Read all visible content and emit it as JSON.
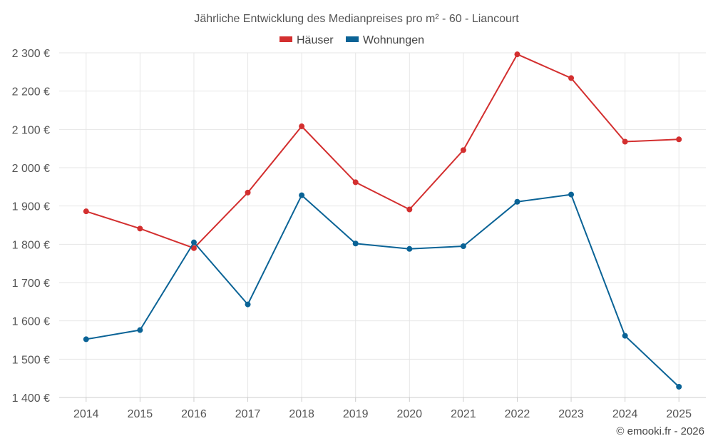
{
  "chart_data": {
    "type": "line",
    "title": "Jährliche Entwicklung des Medianpreises pro m² - 60 - Liancourt",
    "categories": [
      "2014",
      "2015",
      "2016",
      "2017",
      "2018",
      "2019",
      "2020",
      "2021",
      "2022",
      "2023",
      "2024",
      "2025"
    ],
    "series": [
      {
        "name": "Häuser",
        "color": "#d32f2f",
        "values": [
          1886,
          1841,
          1790,
          1935,
          2108,
          1962,
          1891,
          2046,
          2296,
          2234,
          2068,
          2074
        ]
      },
      {
        "name": "Wohnungen",
        "color": "#0a6396",
        "values": [
          1552,
          1576,
          1805,
          1643,
          1928,
          1802,
          1788,
          1795,
          1911,
          1930,
          1561,
          1428
        ]
      }
    ],
    "ylim": [
      1400,
      2300
    ],
    "yticks": [
      1400,
      1500,
      1600,
      1700,
      1800,
      1900,
      2000,
      2100,
      2200,
      2300
    ],
    "ytick_labels": [
      "1 400 €",
      "1 500 €",
      "1 600 €",
      "1 700 €",
      "1 800 €",
      "1 900 €",
      "2 000 €",
      "2 100 €",
      "2 200 €",
      "2 300 €"
    ],
    "xlabel": "",
    "ylabel": "",
    "grid": true,
    "legend_position": "top-center"
  },
  "credit": "© emooki.fr - 2026"
}
